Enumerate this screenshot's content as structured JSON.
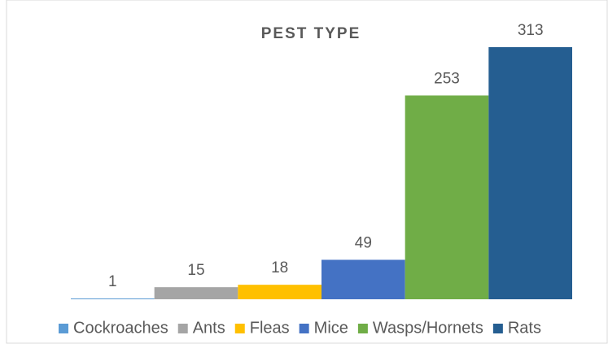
{
  "chart_data": {
    "type": "bar",
    "title": "PEST TYPE",
    "series": [
      {
        "name": "Cockroaches",
        "color": "#5b9bd5",
        "values": [
          1
        ]
      },
      {
        "name": "Ants",
        "color": "#a5a5a5",
        "values": [
          15
        ]
      },
      {
        "name": "Fleas",
        "color": "#ffc000",
        "values": [
          18
        ]
      },
      {
        "name": "Mice",
        "color": "#4472c4",
        "values": [
          49
        ]
      },
      {
        "name": "Wasps/Hornets",
        "color": "#70ad47",
        "values": [
          253
        ]
      },
      {
        "name": "Rats",
        "color": "#255e91",
        "values": [
          313
        ]
      }
    ],
    "legend": "bottom"
  }
}
